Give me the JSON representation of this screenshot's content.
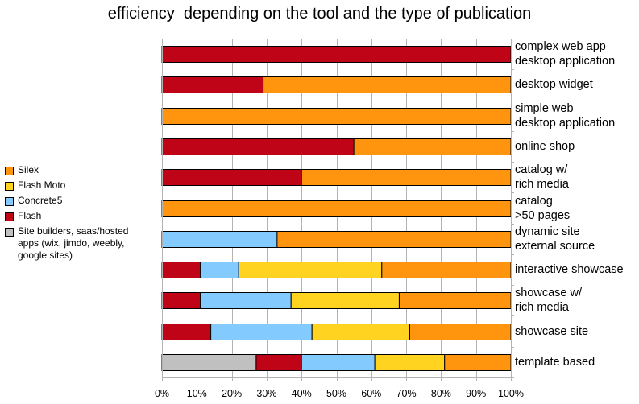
{
  "chart_data": {
    "type": "bar",
    "orientation": "horizontal",
    "stacked": "percent",
    "title": "efficiency  depending on the tool and the type of publication",
    "categories": [
      [
        "complex web app",
        "desktop application"
      ],
      [
        "desktop widget"
      ],
      [
        "simple web",
        "desktop application"
      ],
      [
        "online shop"
      ],
      [
        "catalog w/",
        "rich media"
      ],
      [
        "catalog",
        ">50 pages"
      ],
      [
        "dynamic site",
        "external source"
      ],
      [
        "interactive showcase"
      ],
      [
        "showcase w/",
        "rich media"
      ],
      [
        "showcase site"
      ],
      [
        "template based"
      ]
    ],
    "series": [
      {
        "name": "Site builders, saas/hosted apps (wix, jimdo, weebly, google sites)",
        "color": "#c0c0c0",
        "values": [
          0,
          0,
          0,
          0,
          0,
          0,
          0,
          0,
          0,
          0,
          27
        ]
      },
      {
        "name": "Flash",
        "color": "#c00418",
        "values": [
          100,
          29,
          0,
          55,
          40,
          0,
          0,
          11,
          11,
          14,
          13
        ]
      },
      {
        "name": "Concrete5",
        "color": "#83caff",
        "values": [
          0,
          0,
          0,
          0,
          0,
          0,
          33,
          11,
          26,
          29,
          21
        ]
      },
      {
        "name": "Flash Moto",
        "color": "#ffd320",
        "values": [
          0,
          0,
          0,
          0,
          0,
          0,
          0,
          41,
          31,
          28,
          20
        ]
      },
      {
        "name": "Silex",
        "color": "#ff950e",
        "values": [
          0,
          71,
          100,
          45,
          60,
          100,
          67,
          37,
          32,
          29,
          19
        ]
      }
    ],
    "legend_order": [
      "Silex",
      "Flash Moto",
      "Concrete5",
      "Flash",
      "Site builders, saas/hosted apps (wix, jimdo, weebly, google sites)"
    ],
    "legend_lines": [
      [
        "Silex"
      ],
      [
        "Flash Moto"
      ],
      [
        "Concrete5"
      ],
      [
        "Flash"
      ],
      [
        "Site builders, saas/hosted",
        "apps (wix, jimdo, weebly,",
        "google sites)"
      ]
    ],
    "x_ticks": [
      "0%",
      "10%",
      "20%",
      "30%",
      "40%",
      "50%",
      "60%",
      "70%",
      "80%",
      "90%",
      "100%"
    ],
    "xlim": [
      0,
      100
    ],
    "grid": true,
    "legend_position": "left"
  }
}
